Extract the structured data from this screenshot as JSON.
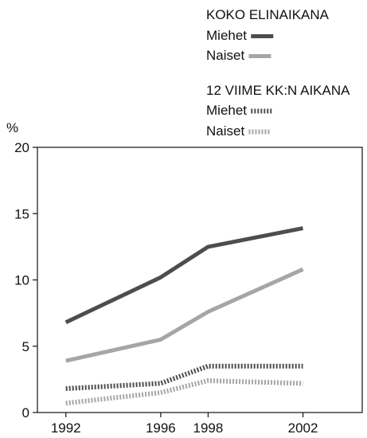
{
  "chart_data": {
    "type": "line",
    "title": "",
    "xlabel": "",
    "ylabel": "%",
    "x": [
      1992,
      1996,
      1998,
      2002
    ],
    "ylim": [
      0,
      20
    ],
    "yticks": [
      0,
      5,
      10,
      15,
      20
    ],
    "grid": false,
    "legend": {
      "placement": "top-right",
      "groups": [
        {
          "title": "KOKO ELINAIKANA",
          "entries": [
            "Miehet",
            "Naiset"
          ]
        },
        {
          "title": "12 VIIME KK:N AIKANA",
          "entries": [
            "Miehet",
            "Naiset"
          ]
        }
      ]
    },
    "series": [
      {
        "group": "KOKO ELINAIKANA",
        "name": "Miehet",
        "values": [
          6.8,
          10.2,
          12.5,
          13.9
        ],
        "color": "#4d4d4d",
        "style": "solid"
      },
      {
        "group": "KOKO ELINAIKANA",
        "name": "Naiset",
        "values": [
          3.9,
          5.5,
          7.6,
          10.8
        ],
        "color": "#a6a6a6",
        "style": "solid"
      },
      {
        "group": "12 VIIME KK:N AIKANA",
        "name": "Miehet",
        "values": [
          1.8,
          2.2,
          3.5,
          3.5
        ],
        "color": "#4d4d4d",
        "style": "dotted"
      },
      {
        "group": "12 VIIME KK:N AIKANA",
        "name": "Naiset",
        "values": [
          0.7,
          1.5,
          2.4,
          2.2
        ],
        "color": "#a6a6a6",
        "style": "dotted"
      }
    ]
  }
}
